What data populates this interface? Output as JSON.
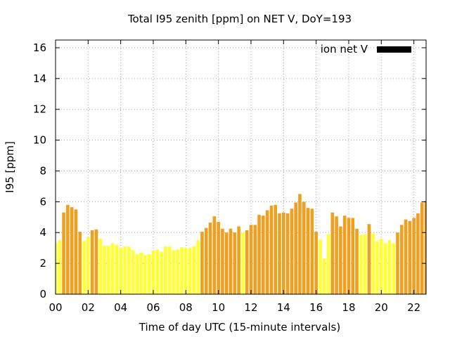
{
  "chart_data": {
    "type": "bar",
    "title": "Total I95 zenith [ppm] on NET V, DoY=193",
    "xlabel": "Time of day UTC (15-minute intervals)",
    "ylabel": "I95 [ppm]",
    "xlim": [
      0,
      22.75
    ],
    "ylim": [
      0,
      16.5
    ],
    "xticks": [
      0,
      2,
      4,
      6,
      8,
      10,
      12,
      14,
      16,
      18,
      20,
      22
    ],
    "xtick_labels": [
      "00",
      "02",
      "04",
      "06",
      "08",
      "10",
      "12",
      "14",
      "16",
      "18",
      "20",
      "22"
    ],
    "yticks": [
      0,
      2,
      4,
      6,
      8,
      10,
      12,
      14,
      16
    ],
    "ytick_labels": [
      "0",
      "2",
      "4",
      "6",
      "8",
      "10",
      "12",
      "14",
      "16"
    ],
    "grid": true,
    "legend": {
      "label": "ion net V",
      "color": "#000000",
      "position": "top-right"
    },
    "bar_width_hours": 0.2,
    "colors": {
      "yellow": "#ffff33",
      "orange": "#f0a020"
    },
    "bars": [
      {
        "x": 0.0,
        "value": 3.3,
        "color": "yellow"
      },
      {
        "x": 0.25,
        "value": 3.5,
        "color": "yellow"
      },
      {
        "x": 0.5,
        "value": 5.3,
        "color": "orange"
      },
      {
        "x": 0.75,
        "value": 5.8,
        "color": "orange"
      },
      {
        "x": 1.0,
        "value": 5.65,
        "color": "orange"
      },
      {
        "x": 1.25,
        "value": 5.5,
        "color": "orange"
      },
      {
        "x": 1.5,
        "value": 4.05,
        "color": "orange"
      },
      {
        "x": 1.75,
        "value": 3.45,
        "color": "yellow"
      },
      {
        "x": 2.0,
        "value": 3.7,
        "color": "yellow"
      },
      {
        "x": 2.25,
        "value": 4.15,
        "color": "orange"
      },
      {
        "x": 2.5,
        "value": 4.2,
        "color": "orange"
      },
      {
        "x": 2.75,
        "value": 3.6,
        "color": "yellow"
      },
      {
        "x": 3.0,
        "value": 3.15,
        "color": "yellow"
      },
      {
        "x": 3.25,
        "value": 3.15,
        "color": "yellow"
      },
      {
        "x": 3.5,
        "value": 3.3,
        "color": "yellow"
      },
      {
        "x": 3.75,
        "value": 3.2,
        "color": "yellow"
      },
      {
        "x": 4.0,
        "value": 3.0,
        "color": "yellow"
      },
      {
        "x": 4.25,
        "value": 3.1,
        "color": "yellow"
      },
      {
        "x": 4.5,
        "value": 3.1,
        "color": "yellow"
      },
      {
        "x": 4.75,
        "value": 2.85,
        "color": "yellow"
      },
      {
        "x": 5.0,
        "value": 2.6,
        "color": "yellow"
      },
      {
        "x": 5.25,
        "value": 2.7,
        "color": "yellow"
      },
      {
        "x": 5.5,
        "value": 2.55,
        "color": "yellow"
      },
      {
        "x": 5.75,
        "value": 2.6,
        "color": "yellow"
      },
      {
        "x": 6.0,
        "value": 2.85,
        "color": "yellow"
      },
      {
        "x": 6.25,
        "value": 2.9,
        "color": "yellow"
      },
      {
        "x": 6.5,
        "value": 2.75,
        "color": "yellow"
      },
      {
        "x": 6.75,
        "value": 3.1,
        "color": "yellow"
      },
      {
        "x": 7.0,
        "value": 3.1,
        "color": "yellow"
      },
      {
        "x": 7.25,
        "value": 2.85,
        "color": "yellow"
      },
      {
        "x": 7.5,
        "value": 2.9,
        "color": "yellow"
      },
      {
        "x": 7.75,
        "value": 3.05,
        "color": "yellow"
      },
      {
        "x": 8.0,
        "value": 3.0,
        "color": "yellow"
      },
      {
        "x": 8.25,
        "value": 3.0,
        "color": "yellow"
      },
      {
        "x": 8.5,
        "value": 3.1,
        "color": "yellow"
      },
      {
        "x": 8.75,
        "value": 3.5,
        "color": "yellow"
      },
      {
        "x": 9.0,
        "value": 4.05,
        "color": "orange"
      },
      {
        "x": 9.25,
        "value": 4.3,
        "color": "orange"
      },
      {
        "x": 9.5,
        "value": 4.65,
        "color": "orange"
      },
      {
        "x": 9.75,
        "value": 5.05,
        "color": "orange"
      },
      {
        "x": 10.0,
        "value": 4.7,
        "color": "orange"
      },
      {
        "x": 10.25,
        "value": 4.25,
        "color": "orange"
      },
      {
        "x": 10.5,
        "value": 4.0,
        "color": "orange"
      },
      {
        "x": 10.75,
        "value": 4.25,
        "color": "orange"
      },
      {
        "x": 11.0,
        "value": 4.0,
        "color": "orange"
      },
      {
        "x": 11.25,
        "value": 4.4,
        "color": "orange"
      },
      {
        "x": 11.5,
        "value": 4.0,
        "color": "yellow"
      },
      {
        "x": 11.75,
        "value": 4.15,
        "color": "orange"
      },
      {
        "x": 12.0,
        "value": 4.5,
        "color": "orange"
      },
      {
        "x": 12.25,
        "value": 4.5,
        "color": "orange"
      },
      {
        "x": 12.5,
        "value": 5.15,
        "color": "orange"
      },
      {
        "x": 12.75,
        "value": 5.1,
        "color": "orange"
      },
      {
        "x": 13.0,
        "value": 5.45,
        "color": "orange"
      },
      {
        "x": 13.25,
        "value": 5.75,
        "color": "orange"
      },
      {
        "x": 13.5,
        "value": 5.8,
        "color": "orange"
      },
      {
        "x": 13.75,
        "value": 5.25,
        "color": "orange"
      },
      {
        "x": 14.0,
        "value": 5.3,
        "color": "orange"
      },
      {
        "x": 14.25,
        "value": 5.25,
        "color": "orange"
      },
      {
        "x": 14.5,
        "value": 5.55,
        "color": "orange"
      },
      {
        "x": 14.75,
        "value": 5.95,
        "color": "orange"
      },
      {
        "x": 15.0,
        "value": 6.5,
        "color": "orange"
      },
      {
        "x": 15.25,
        "value": 6.0,
        "color": "orange"
      },
      {
        "x": 15.5,
        "value": 5.6,
        "color": "orange"
      },
      {
        "x": 15.75,
        "value": 5.55,
        "color": "orange"
      },
      {
        "x": 16.0,
        "value": 4.05,
        "color": "orange"
      },
      {
        "x": 16.25,
        "value": 3.55,
        "color": "yellow"
      },
      {
        "x": 16.5,
        "value": 2.3,
        "color": "yellow"
      },
      {
        "x": 16.75,
        "value": 3.9,
        "color": "yellow"
      },
      {
        "x": 17.0,
        "value": 5.3,
        "color": "orange"
      },
      {
        "x": 17.25,
        "value": 5.05,
        "color": "orange"
      },
      {
        "x": 17.5,
        "value": 4.4,
        "color": "orange"
      },
      {
        "x": 17.75,
        "value": 5.1,
        "color": "orange"
      },
      {
        "x": 18.0,
        "value": 4.95,
        "color": "orange"
      },
      {
        "x": 18.25,
        "value": 4.95,
        "color": "orange"
      },
      {
        "x": 18.5,
        "value": 4.25,
        "color": "orange"
      },
      {
        "x": 18.75,
        "value": 3.85,
        "color": "yellow"
      },
      {
        "x": 19.0,
        "value": 3.9,
        "color": "yellow"
      },
      {
        "x": 19.25,
        "value": 4.55,
        "color": "orange"
      },
      {
        "x": 19.5,
        "value": 3.95,
        "color": "yellow"
      },
      {
        "x": 19.75,
        "value": 3.45,
        "color": "yellow"
      },
      {
        "x": 20.0,
        "value": 3.6,
        "color": "yellow"
      },
      {
        "x": 20.25,
        "value": 3.3,
        "color": "yellow"
      },
      {
        "x": 20.5,
        "value": 3.5,
        "color": "yellow"
      },
      {
        "x": 20.75,
        "value": 3.3,
        "color": "yellow"
      },
      {
        "x": 21.0,
        "value": 4.0,
        "color": "orange"
      },
      {
        "x": 21.25,
        "value": 4.5,
        "color": "orange"
      },
      {
        "x": 21.5,
        "value": 4.85,
        "color": "orange"
      },
      {
        "x": 21.75,
        "value": 4.75,
        "color": "orange"
      },
      {
        "x": 22.0,
        "value": 4.95,
        "color": "orange"
      },
      {
        "x": 22.25,
        "value": 5.25,
        "color": "orange"
      },
      {
        "x": 22.5,
        "value": 5.95,
        "color": "orange"
      },
      {
        "x": 22.75,
        "value": 6.05,
        "color": "orange"
      }
    ]
  }
}
